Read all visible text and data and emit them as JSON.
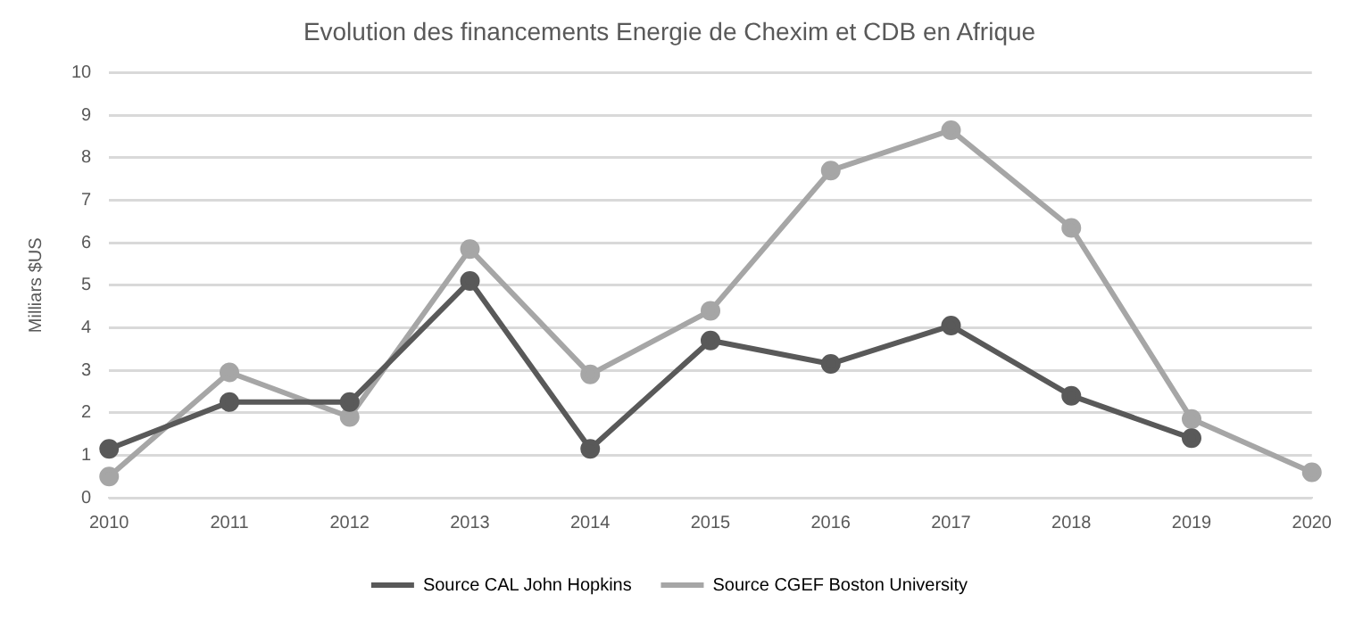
{
  "chart_data": {
    "type": "line",
    "title": "Evolution des financements Energie de Chexim et CDB en Afrique",
    "ylabel": "Milliars $US",
    "categories": [
      "2010",
      "2011",
      "2012",
      "2013",
      "2014",
      "2015",
      "2016",
      "2017",
      "2018",
      "2019",
      "2020"
    ],
    "series": [
      {
        "name": "Source CAL John Hopkins",
        "color": "#595959",
        "values": [
          1.15,
          2.25,
          2.25,
          5.1,
          1.15,
          3.7,
          3.15,
          4.05,
          2.4,
          1.4,
          null
        ]
      },
      {
        "name": "Source CGEF Boston University",
        "color": "#a6a6a6",
        "values": [
          0.5,
          2.95,
          1.9,
          5.85,
          2.9,
          4.4,
          7.7,
          8.65,
          6.35,
          1.85,
          0.6
        ]
      }
    ],
    "ylim": [
      0,
      10
    ],
    "yticks": [
      0,
      1,
      2,
      3,
      4,
      5,
      6,
      7,
      8,
      9,
      10
    ],
    "grid": "y",
    "legend": "bottom",
    "marker": "circle",
    "line_style": "solid"
  }
}
